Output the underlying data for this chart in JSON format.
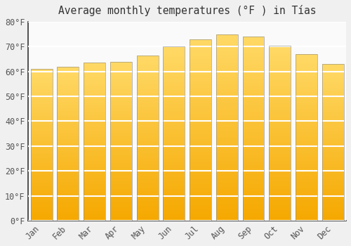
{
  "title": "Average monthly temperatures (°F ) in Tías",
  "months": [
    "Jan",
    "Feb",
    "Mar",
    "Apr",
    "May",
    "Jun",
    "Jul",
    "Aug",
    "Sep",
    "Oct",
    "Nov",
    "Dec"
  ],
  "values": [
    61,
    62,
    63.5,
    64,
    66.5,
    70,
    73,
    75,
    74,
    70.5,
    67,
    63
  ],
  "bar_color_bottom": "#F5A800",
  "bar_color_top": "#FFD966",
  "bar_edge_color": "#BBBBBB",
  "ylim": [
    0,
    80
  ],
  "yticks": [
    0,
    10,
    20,
    30,
    40,
    50,
    60,
    70,
    80
  ],
  "background_color": "#F0F0F0",
  "plot_bg_color": "#FAFAFA",
  "grid_color": "#FFFFFF",
  "title_fontsize": 10.5,
  "tick_fontsize": 8.5,
  "tick_color": "#555555",
  "spine_color": "#333333",
  "font_family": "monospace"
}
